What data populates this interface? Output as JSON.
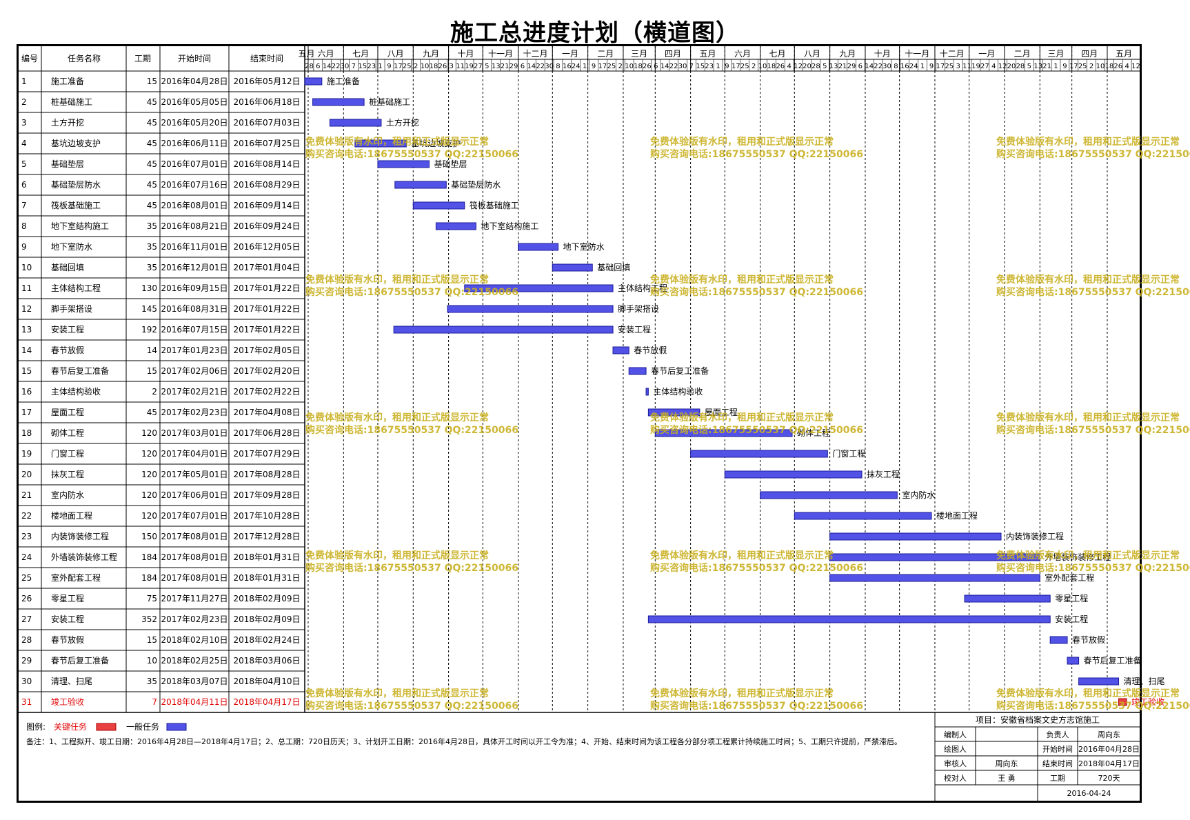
{
  "title": "施工总进度计划（横道图）",
  "table_headers": {
    "id": "编号",
    "name": "任务名称",
    "duration": "工期",
    "start": "开始时间",
    "end": "结束时间"
  },
  "months": [
    "五月",
    "六月",
    "七月",
    "八月",
    "九月",
    "十月",
    "十一月",
    "十二月",
    "一月",
    "二月",
    "三月",
    "四月",
    "五月",
    "六月",
    "七月",
    "八月",
    "九月",
    "十月",
    "十一月",
    "十二月",
    "一月",
    "二月",
    "三月",
    "四月",
    "五月"
  ],
  "day_ticks": "28|6|14|22|30|7|15|23|1|9|17|25|2|10|18|26|3|11|19|27|5|13|21|29|6|14|22|30|8|16|24|1|9|17|25|2|10|18|26|6|14|22|30|7|15|23|1|9|17|25|2|10|18|26|4|12|20|28|5|13|21|29|6|14|22|30|8|16|24|1|9|17|25|3|11|19|27|4|12|20|28|5|13|21|1|9|17|25|2|10|18|26|4|12",
  "chart_data": {
    "type": "gantt",
    "x_range": [
      "2016-04-28",
      "2018-04-30"
    ],
    "tasks": [
      {
        "id": "1",
        "name": "施工准备",
        "duration": "15",
        "start": "2016年04月28日",
        "end": "2016年05月12日",
        "s": "2016-04-28",
        "e": "2016-05-12",
        "critical": false
      },
      {
        "id": "2",
        "name": "桩基础施工",
        "duration": "45",
        "start": "2016年05月05日",
        "end": "2016年06月18日",
        "s": "2016-05-05",
        "e": "2016-06-18",
        "critical": false
      },
      {
        "id": "3",
        "name": "土方开挖",
        "duration": "45",
        "start": "2016年05月20日",
        "end": "2016年07月03日",
        "s": "2016-05-20",
        "e": "2016-07-03",
        "critical": false
      },
      {
        "id": "4",
        "name": "基坑边坡支护",
        "duration": "45",
        "start": "2016年06月11日",
        "end": "2016年07月25日",
        "s": "2016-06-11",
        "e": "2016-07-25",
        "critical": false
      },
      {
        "id": "5",
        "name": "基础垫层",
        "duration": "45",
        "start": "2016年07月01日",
        "end": "2016年08月14日",
        "s": "2016-07-01",
        "e": "2016-08-14",
        "critical": false
      },
      {
        "id": "6",
        "name": "基础垫层防水",
        "duration": "45",
        "start": "2016年07月16日",
        "end": "2016年08月29日",
        "s": "2016-07-16",
        "e": "2016-08-29",
        "critical": false
      },
      {
        "id": "7",
        "name": "筏板基础施工",
        "duration": "45",
        "start": "2016年08月01日",
        "end": "2016年09月14日",
        "s": "2016-08-01",
        "e": "2016-09-14",
        "critical": false
      },
      {
        "id": "8",
        "name": "地下室结构施工",
        "duration": "35",
        "start": "2016年08月21日",
        "end": "2016年09月24日",
        "s": "2016-08-21",
        "e": "2016-09-24",
        "critical": false
      },
      {
        "id": "9",
        "name": "地下室防水",
        "duration": "35",
        "start": "2016年11月01日",
        "end": "2016年12月05日",
        "s": "2016-11-01",
        "e": "2016-12-05",
        "critical": false
      },
      {
        "id": "10",
        "name": "基础回填",
        "duration": "35",
        "start": "2016年12月01日",
        "end": "2017年01月04日",
        "s": "2016-12-01",
        "e": "2017-01-04",
        "critical": false
      },
      {
        "id": "11",
        "name": "主体结构工程",
        "duration": "130",
        "start": "2016年09月15日",
        "end": "2017年01月22日",
        "s": "2016-09-15",
        "e": "2017-01-22",
        "critical": false
      },
      {
        "id": "12",
        "name": "脚手架搭设",
        "duration": "145",
        "start": "2016年08月31日",
        "end": "2017年01月22日",
        "s": "2016-08-31",
        "e": "2017-01-22",
        "critical": false
      },
      {
        "id": "13",
        "name": "安装工程",
        "duration": "192",
        "start": "2016年07月15日",
        "end": "2017年01月22日",
        "s": "2016-07-15",
        "e": "2017-01-22",
        "critical": false
      },
      {
        "id": "14",
        "name": "春节放假",
        "duration": "14",
        "start": "2017年01月23日",
        "end": "2017年02月05日",
        "s": "2017-01-23",
        "e": "2017-02-05",
        "critical": false
      },
      {
        "id": "15",
        "name": "春节后复工准备",
        "duration": "15",
        "start": "2017年02月06日",
        "end": "2017年02月20日",
        "s": "2017-02-06",
        "e": "2017-02-20",
        "critical": false
      },
      {
        "id": "16",
        "name": "主体结构验收",
        "duration": "2",
        "start": "2017年02月21日",
        "end": "2017年02月22日",
        "s": "2017-02-21",
        "e": "2017-02-22",
        "critical": false
      },
      {
        "id": "17",
        "name": "屋面工程",
        "duration": "45",
        "start": "2017年02月23日",
        "end": "2017年04月08日",
        "s": "2017-02-23",
        "e": "2017-04-08",
        "critical": false
      },
      {
        "id": "18",
        "name": "砌体工程",
        "duration": "120",
        "start": "2017年03月01日",
        "end": "2017年06月28日",
        "s": "2017-03-01",
        "e": "2017-06-28",
        "critical": false
      },
      {
        "id": "19",
        "name": "门窗工程",
        "duration": "120",
        "start": "2017年04月01日",
        "end": "2017年07月29日",
        "s": "2017-04-01",
        "e": "2017-07-29",
        "critical": false
      },
      {
        "id": "20",
        "name": "抹灰工程",
        "duration": "120",
        "start": "2017年05月01日",
        "end": "2017年08月28日",
        "s": "2017-05-01",
        "e": "2017-08-28",
        "critical": false
      },
      {
        "id": "21",
        "name": "室内防水",
        "duration": "120",
        "start": "2017年06月01日",
        "end": "2017年09月28日",
        "s": "2017-06-01",
        "e": "2017-09-28",
        "critical": false
      },
      {
        "id": "22",
        "name": "楼地面工程",
        "duration": "120",
        "start": "2017年07月01日",
        "end": "2017年10月28日",
        "s": "2017-07-01",
        "e": "2017-10-28",
        "critical": false
      },
      {
        "id": "23",
        "name": "内装饰装修工程",
        "duration": "150",
        "start": "2017年08月01日",
        "end": "2017年12月28日",
        "s": "2017-08-01",
        "e": "2017-12-28",
        "critical": false
      },
      {
        "id": "24",
        "name": "外墙装饰装修工程",
        "duration": "184",
        "start": "2017年08月01日",
        "end": "2018年01月31日",
        "s": "2017-08-01",
        "e": "2018-01-31",
        "critical": false
      },
      {
        "id": "25",
        "name": "室外配套工程",
        "duration": "184",
        "start": "2017年08月01日",
        "end": "2018年01月31日",
        "s": "2017-08-01",
        "e": "2018-01-31",
        "critical": false
      },
      {
        "id": "26",
        "name": "零星工程",
        "duration": "75",
        "start": "2017年11月27日",
        "end": "2018年02月09日",
        "s": "2017-11-27",
        "e": "2018-02-09",
        "critical": false
      },
      {
        "id": "27",
        "name": "安装工程",
        "duration": "352",
        "start": "2017年02月23日",
        "end": "2018年02月09日",
        "s": "2017-02-23",
        "e": "2018-02-09",
        "critical": false
      },
      {
        "id": "28",
        "name": "春节放假",
        "duration": "15",
        "start": "2018年02月10日",
        "end": "2018年02月24日",
        "s": "2018-02-10",
        "e": "2018-02-24",
        "critical": false
      },
      {
        "id": "29",
        "name": "春节后复工准备",
        "duration": "10",
        "start": "2018年02月25日",
        "end": "2018年03月06日",
        "s": "2018-02-25",
        "e": "2018-03-06",
        "critical": false
      },
      {
        "id": "30",
        "name": "清理、扫尾",
        "duration": "35",
        "start": "2018年03月07日",
        "end": "2018年04月10日",
        "s": "2018-03-07",
        "e": "2018-04-10",
        "critical": false
      },
      {
        "id": "31",
        "name": "竣工验收",
        "duration": "7",
        "start": "2018年04月11日",
        "end": "2018年04月17日",
        "s": "2018-04-11",
        "e": "2018-04-17",
        "critical": true
      }
    ]
  },
  "watermark": {
    "line1": "免费体验版有水印，租用和正式版显示正常",
    "line2": "购买咨询电话:18675550537 QQ:22150066"
  },
  "legend": {
    "label": "图例:",
    "critical": "关键任务",
    "normal": "一般任务"
  },
  "notes": "备注：1、工程拟开、竣工日期：2016年4月28日—2018年4月17日；2、总工期：720日历天；3、计划开工日期：2016年4月28日，具体开工时间以开工令为准；4、开始、结束时间为该工程各分部分项工程累计持续施工时间；5、工期只许提前，严禁滞后。",
  "info": {
    "project": "项目：安徽省档案文史方志馆施工",
    "compiler_label": "编制人",
    "compiler": "",
    "leader_label": "负责人",
    "leader": "周向东",
    "drawer_label": "绘图人",
    "drawer": "",
    "start_label": "开始时间",
    "start": "2016年04月28日",
    "reviewer_label": "审核人",
    "reviewer": "周向东",
    "end_label": "结束时间",
    "end": "2018年04月17日",
    "checker_label": "校对人",
    "checker": "王 勇",
    "duration_label": "工期",
    "duration": "720天",
    "date": "2016-04-24"
  },
  "colors": {
    "bar": "#5252e6",
    "bar_stroke": "#1a1a9a",
    "critical": "#e84040",
    "critical_text": "#e00000",
    "watermark": "#c9b020"
  }
}
